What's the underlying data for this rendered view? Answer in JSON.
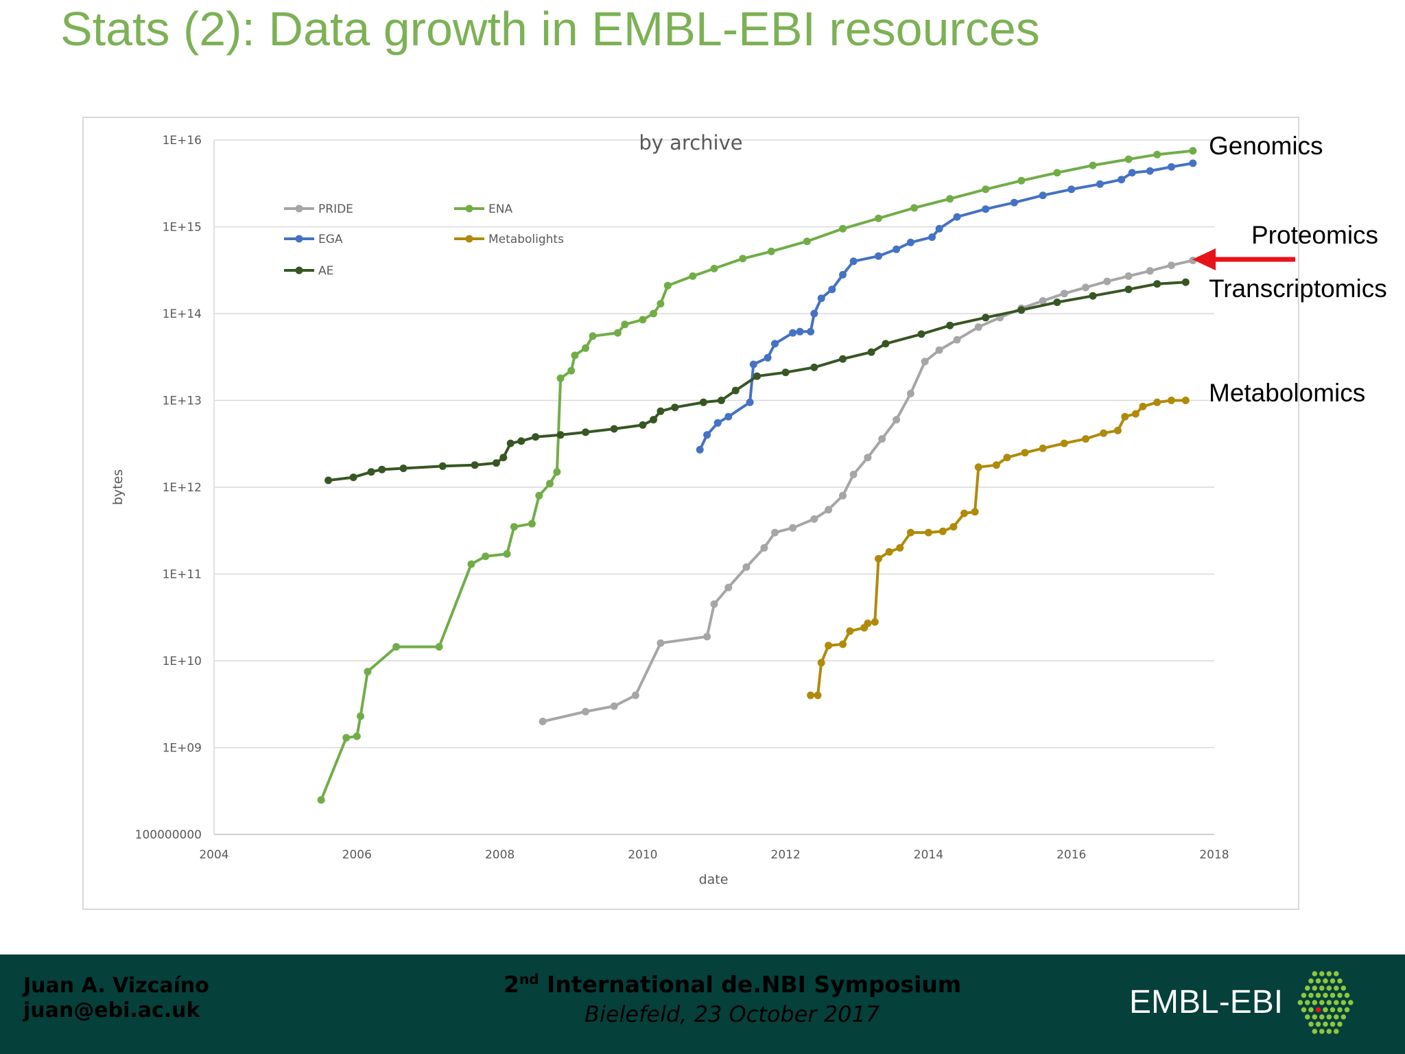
{
  "slide": {
    "title": "Stats (2): Data growth in EMBL-EBI resources"
  },
  "annotations": {
    "genomics": "Genomics",
    "proteomics": "Proteomics",
    "transcriptomics": "Transcriptomics",
    "metabolomics": "Metabolomics"
  },
  "footer": {
    "presenter_name": "Juan A. Vizcaíno",
    "presenter_email": "juan@ebi.ac.uk",
    "event_ordinal": "2",
    "event_ordinal_suffix": "nd",
    "event_name": " International de.NBI Symposium",
    "event_place": "Bielefeld, 23 October 2017",
    "logo_text": "EMBL-EBI"
  },
  "colors": {
    "title": "#7cb155",
    "PRIDE": "#a6a6a6",
    "ENA": "#70ad47",
    "EGA": "#4472c4",
    "Metabolights": "#b08a0a",
    "AE": "#375623",
    "arrow": "#e8121b",
    "footer_bg": "#05403b"
  },
  "chart_data": {
    "type": "line",
    "title": "by archive",
    "xlabel": "date",
    "ylabel": "bytes",
    "y_scale": "log",
    "xlim": [
      2004,
      2018
    ],
    "ylim": [
      100000000,
      10000000000000000
    ],
    "x_ticks": [
      "2004",
      "2006",
      "2008",
      "2010",
      "2012",
      "2014",
      "2016",
      "2018"
    ],
    "y_ticks": [
      "100000000",
      "1E+09",
      "1E+10",
      "1E+11",
      "1E+12",
      "1E+13",
      "1E+14",
      "1E+15",
      "1E+16"
    ],
    "grid": true,
    "legend_position": "top-left",
    "legend": [
      "PRIDE",
      "ENA",
      "EGA",
      "Metabolights",
      "AE"
    ],
    "series": [
      {
        "name": "PRIDE",
        "points": [
          [
            2008.6,
            2000000000.0
          ],
          [
            2009.2,
            2600000000.0
          ],
          [
            2009.6,
            3000000000.0
          ],
          [
            2009.9,
            4000000000.0
          ],
          [
            2010.25,
            16000000000.0
          ],
          [
            2010.9,
            19000000000.0
          ],
          [
            2011.0,
            45000000000.0
          ],
          [
            2011.2,
            70000000000.0
          ],
          [
            2011.45,
            120000000000.0
          ],
          [
            2011.7,
            200000000000.0
          ],
          [
            2011.85,
            300000000000.0
          ],
          [
            2012.1,
            340000000000.0
          ],
          [
            2012.4,
            430000000000.0
          ],
          [
            2012.6,
            550000000000.0
          ],
          [
            2012.8,
            800000000000.0
          ],
          [
            2012.95,
            1400000000000.0
          ],
          [
            2013.15,
            2200000000000.0
          ],
          [
            2013.35,
            3600000000000.0
          ],
          [
            2013.55,
            6000000000000.0
          ],
          [
            2013.75,
            12000000000000.0
          ],
          [
            2013.95,
            28000000000000.0
          ],
          [
            2014.15,
            38000000000000.0
          ],
          [
            2014.4,
            50000000000000.0
          ],
          [
            2014.7,
            70000000000000.0
          ],
          [
            2015.0,
            90000000000000.0
          ],
          [
            2015.3,
            115000000000000.0
          ],
          [
            2015.6,
            140000000000000.0
          ],
          [
            2015.9,
            170000000000000.0
          ],
          [
            2016.2,
            200000000000000.0
          ],
          [
            2016.5,
            235000000000000.0
          ],
          [
            2016.8,
            270000000000000.0
          ],
          [
            2017.1,
            310000000000000.0
          ],
          [
            2017.4,
            360000000000000.0
          ],
          [
            2017.7,
            410000000000000.0
          ]
        ]
      },
      {
        "name": "ENA",
        "points": [
          [
            2005.5,
            250000000.0
          ],
          [
            2005.85,
            1300000000.0
          ],
          [
            2006.0,
            1350000000.0
          ],
          [
            2006.05,
            2300000000.0
          ],
          [
            2006.15,
            7500000000.0
          ],
          [
            2006.55,
            14500000000.0
          ],
          [
            2007.15,
            14500000000.0
          ],
          [
            2007.6,
            130000000000.0
          ],
          [
            2007.8,
            160000000000.0
          ],
          [
            2008.1,
            170000000000.0
          ],
          [
            2008.2,
            350000000000.0
          ],
          [
            2008.45,
            380000000000.0
          ],
          [
            2008.55,
            800000000000.0
          ],
          [
            2008.7,
            1100000000000.0
          ],
          [
            2008.8,
            1500000000000.0
          ],
          [
            2008.85,
            18000000000000.0
          ],
          [
            2009.0,
            22000000000000.0
          ],
          [
            2009.05,
            33000000000000.0
          ],
          [
            2009.2,
            40000000000000.0
          ],
          [
            2009.3,
            55000000000000.0
          ],
          [
            2009.65,
            60000000000000.0
          ],
          [
            2009.75,
            75000000000000.0
          ],
          [
            2010.0,
            85000000000000.0
          ],
          [
            2010.15,
            100000000000000.0
          ],
          [
            2010.25,
            130000000000000.0
          ],
          [
            2010.35,
            210000000000000.0
          ],
          [
            2010.7,
            270000000000000.0
          ],
          [
            2011.0,
            330000000000000.0
          ],
          [
            2011.4,
            430000000000000.0
          ],
          [
            2011.8,
            520000000000000.0
          ],
          [
            2012.3,
            680000000000000.0
          ],
          [
            2012.8,
            950000000000000.0
          ],
          [
            2013.3,
            1250000000000000.0
          ],
          [
            2013.8,
            1650000000000000.0
          ],
          [
            2014.3,
            2100000000000000.0
          ],
          [
            2014.8,
            2700000000000000.0
          ],
          [
            2015.3,
            3400000000000000.0
          ],
          [
            2015.8,
            4200000000000000.0
          ],
          [
            2016.3,
            5100000000000000.0
          ],
          [
            2016.8,
            6000000000000000.0
          ],
          [
            2017.2,
            6800000000000000.0
          ],
          [
            2017.7,
            7500000000000000.0
          ]
        ]
      },
      {
        "name": "EGA",
        "points": [
          [
            2010.8,
            2700000000000.0
          ],
          [
            2010.9,
            4000000000000.0
          ],
          [
            2011.05,
            5500000000000.0
          ],
          [
            2011.2,
            6500000000000.0
          ],
          [
            2011.5,
            9500000000000.0
          ],
          [
            2011.55,
            26000000000000.0
          ],
          [
            2011.75,
            31000000000000.0
          ],
          [
            2011.85,
            45000000000000.0
          ],
          [
            2012.1,
            60000000000000.0
          ],
          [
            2012.2,
            62000000000000.0
          ],
          [
            2012.35,
            62000000000000.0
          ],
          [
            2012.4,
            100000000000000.0
          ],
          [
            2012.5,
            150000000000000.0
          ],
          [
            2012.65,
            190000000000000.0
          ],
          [
            2012.8,
            280000000000000.0
          ],
          [
            2012.95,
            400000000000000.0
          ],
          [
            2013.3,
            460000000000000.0
          ],
          [
            2013.55,
            550000000000000.0
          ],
          [
            2013.75,
            660000000000000.0
          ],
          [
            2014.05,
            760000000000000.0
          ],
          [
            2014.15,
            950000000000000.0
          ],
          [
            2014.4,
            1300000000000000.0
          ],
          [
            2014.8,
            1600000000000000.0
          ],
          [
            2015.2,
            1900000000000000.0
          ],
          [
            2015.6,
            2300000000000000.0
          ],
          [
            2016.0,
            2700000000000000.0
          ],
          [
            2016.4,
            3100000000000000.0
          ],
          [
            2016.7,
            3500000000000000.0
          ],
          [
            2016.85,
            4200000000000000.0
          ],
          [
            2017.1,
            4400000000000000.0
          ],
          [
            2017.4,
            4900000000000000.0
          ],
          [
            2017.7,
            5400000000000000.0
          ]
        ]
      },
      {
        "name": "Metabolights",
        "points": [
          [
            2012.35,
            4000000000.0
          ],
          [
            2012.45,
            4000000000.0
          ],
          [
            2012.5,
            9500000000.0
          ],
          [
            2012.6,
            15000000000.0
          ],
          [
            2012.8,
            15500000000.0
          ],
          [
            2012.9,
            22000000000.0
          ],
          [
            2013.1,
            24000000000.0
          ],
          [
            2013.15,
            27000000000.0
          ],
          [
            2013.25,
            28000000000.0
          ],
          [
            2013.3,
            150000000000.0
          ],
          [
            2013.45,
            180000000000.0
          ],
          [
            2013.6,
            200000000000.0
          ],
          [
            2013.75,
            300000000000.0
          ],
          [
            2014.0,
            300000000000.0
          ],
          [
            2014.2,
            310000000000.0
          ],
          [
            2014.35,
            350000000000.0
          ],
          [
            2014.5,
            500000000000.0
          ],
          [
            2014.65,
            520000000000.0
          ],
          [
            2014.7,
            1700000000000.0
          ],
          [
            2014.95,
            1800000000000.0
          ],
          [
            2015.1,
            2200000000000.0
          ],
          [
            2015.35,
            2500000000000.0
          ],
          [
            2015.6,
            2800000000000.0
          ],
          [
            2015.9,
            3200000000000.0
          ],
          [
            2016.2,
            3600000000000.0
          ],
          [
            2016.45,
            4200000000000.0
          ],
          [
            2016.65,
            4500000000000.0
          ],
          [
            2016.75,
            6500000000000.0
          ],
          [
            2016.9,
            7000000000000.0
          ],
          [
            2017.0,
            8500000000000.0
          ],
          [
            2017.2,
            9500000000000.0
          ],
          [
            2017.4,
            10000000000000.0
          ],
          [
            2017.6,
            10000000000000.0
          ]
        ]
      },
      {
        "name": "AE",
        "points": [
          [
            2005.6,
            1200000000000.0
          ],
          [
            2005.95,
            1300000000000.0
          ],
          [
            2006.2,
            1500000000000.0
          ],
          [
            2006.35,
            1600000000000.0
          ],
          [
            2006.65,
            1650000000000.0
          ],
          [
            2007.2,
            1750000000000.0
          ],
          [
            2007.65,
            1800000000000.0
          ],
          [
            2007.95,
            1900000000000.0
          ],
          [
            2008.05,
            2200000000000.0
          ],
          [
            2008.15,
            3200000000000.0
          ],
          [
            2008.3,
            3400000000000.0
          ],
          [
            2008.5,
            3800000000000.0
          ],
          [
            2008.85,
            4000000000000.0
          ],
          [
            2009.2,
            4300000000000.0
          ],
          [
            2009.6,
            4700000000000.0
          ],
          [
            2010.0,
            5200000000000.0
          ],
          [
            2010.15,
            6000000000000.0
          ],
          [
            2010.25,
            7500000000000.0
          ],
          [
            2010.45,
            8300000000000.0
          ],
          [
            2010.85,
            9500000000000.0
          ],
          [
            2011.1,
            10000000000000.0
          ],
          [
            2011.3,
            13000000000000.0
          ],
          [
            2011.6,
            19000000000000.0
          ],
          [
            2012.0,
            21000000000000.0
          ],
          [
            2012.4,
            24000000000000.0
          ],
          [
            2012.8,
            30000000000000.0
          ],
          [
            2013.2,
            36000000000000.0
          ],
          [
            2013.4,
            45000000000000.0
          ],
          [
            2013.9,
            58000000000000.0
          ],
          [
            2014.3,
            73000000000000.0
          ],
          [
            2014.8,
            90000000000000.0
          ],
          [
            2015.3,
            110000000000000.0
          ],
          [
            2015.8,
            135000000000000.0
          ],
          [
            2016.3,
            160000000000000.0
          ],
          [
            2016.8,
            190000000000000.0
          ],
          [
            2017.2,
            220000000000000.0
          ],
          [
            2017.6,
            230000000000000.0
          ]
        ]
      }
    ]
  }
}
